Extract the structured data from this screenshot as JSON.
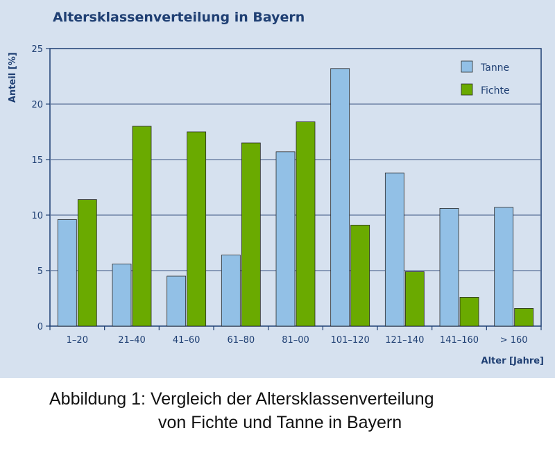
{
  "chart_data": {
    "type": "bar",
    "title": "Altersklassenverteilung in Bayern",
    "ylabel": "Anteil [%]",
    "xlabel": "Alter [Jahre]",
    "categories": [
      "1–20",
      "21–40",
      "41–60",
      "61–80",
      "81–00",
      "101–120",
      "121–140",
      "141–160",
      "> 160"
    ],
    "series": [
      {
        "name": "Tanne",
        "color": "#92c0e6",
        "values": [
          9.6,
          5.6,
          4.5,
          6.4,
          15.7,
          23.2,
          13.8,
          10.6,
          10.7
        ]
      },
      {
        "name": "Fichte",
        "color": "#6aaa00",
        "values": [
          11.4,
          18.0,
          17.5,
          16.5,
          18.4,
          9.1,
          4.9,
          2.6,
          1.6
        ]
      }
    ],
    "ylim": [
      0,
      25
    ],
    "yticks": [
      0,
      5,
      10,
      15,
      20,
      25
    ],
    "grid": true,
    "legend_position": "top-right"
  },
  "caption": {
    "line1": "Abbildung 1: Vergleich der Altersklassenverteilung",
    "line2": "von Fichte und Tanne in Bayern"
  }
}
